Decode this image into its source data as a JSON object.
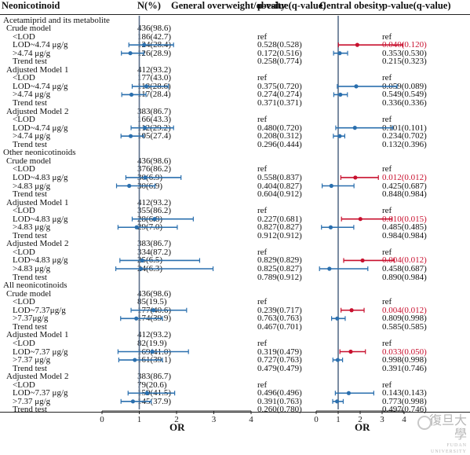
{
  "headers": {
    "col1": "Neonicotinoid",
    "col2": "N(%)",
    "col3": "General overweight/obesity",
    "col4": "p-value(q-value)",
    "col5": "Central obesity",
    "col6": "p-value(q-value)"
  },
  "axis": {
    "label": "OR",
    "ticks": [
      "0",
      "1",
      "2",
      "3",
      "4"
    ]
  },
  "watermark": {
    "cn": "復旦大學",
    "en": "FUDAN UNIVERSITY"
  },
  "colors": {
    "general_point": "#2a6fae",
    "central_point": "#2a6fae",
    "significant": "#c8102e",
    "reference_line": "#5a6f8a"
  },
  "rows": [
    {
      "label": "Acetamiprid and its metabolite",
      "indent": 4
    },
    {
      "label": "Crude model",
      "indent": 8,
      "n": "436(98.6)"
    },
    {
      "label": "<LOD",
      "indent": 16,
      "n": "186(42.7)",
      "p1": "ref",
      "p2": "ref"
    },
    {
      "label": "LOD~4.74 μg/g",
      "indent": 16,
      "n": "124(28.4)",
      "p1": "0.528(0.528)",
      "p2": "0.040(0.120)",
      "p2red": true,
      "g": {
        "or": 1.13,
        "lo": 0.72,
        "hi": 1.92
      },
      "c": {
        "or": 1.87,
        "lo": 1.01,
        "hi": 3.95,
        "sig": true
      }
    },
    {
      "label": ">4.74 μg/g",
      "indent": 16,
      "n": "126(28.9)",
      "p1": "0.172(0.516)",
      "p2": "0.353(0.530)",
      "g": {
        "or": 0.76,
        "lo": 0.52,
        "hi": 1.12
      },
      "c": {
        "or": 1.07,
        "lo": 0.79,
        "hi": 1.43
      }
    },
    {
      "label": "Trend test",
      "indent": 16,
      "p1": "0.258(0.774)",
      "p2": "0.215(0.323)"
    },
    {
      "label": "Adjusted Model 1",
      "indent": 8,
      "n": "412(93.2)"
    },
    {
      "label": "<LOD",
      "indent": 16,
      "n": "177(43.0)",
      "p1": "ref",
      "p2": "ref"
    },
    {
      "label": "LOD~4.74 μg/g",
      "indent": 16,
      "n": "118(28.6)",
      "p1": "0.375(0.720)",
      "p2": "0.059(0.089)",
      "g": {
        "or": 1.19,
        "lo": 0.81,
        "hi": 1.78
      },
      "c": {
        "or": 1.82,
        "lo": 0.96,
        "hi": 3.68
      }
    },
    {
      "label": ">4.74 μg/g",
      "indent": 16,
      "n": "117(28.4)",
      "p1": "0.274(0.274)",
      "p2": "0.549(0.549)",
      "g": {
        "or": 0.79,
        "lo": 0.53,
        "hi": 1.18
      },
      "c": {
        "or": 1.1,
        "lo": 0.8,
        "hi": 1.42
      }
    },
    {
      "label": "Trend test",
      "indent": 16,
      "p1": "0.371(0.371)",
      "p2": "0.336(0.336)"
    },
    {
      "label": "Adjusted Model 2",
      "indent": 8,
      "n": "383(86.7)"
    },
    {
      "label": "<LOD",
      "indent": 16,
      "n": "166(43.3)",
      "p1": "ref",
      "p2": "ref"
    },
    {
      "label": "LOD~4.74 μg/g",
      "indent": 16,
      "n": "112(29.2)",
      "p1": "0.480(0.720)",
      "p2": "0.101(0.101)",
      "g": {
        "or": 1.15,
        "lo": 0.78,
        "hi": 1.92
      },
      "c": {
        "or": 1.76,
        "lo": 0.89,
        "hi": 3.48
      }
    },
    {
      "label": ">4.74 μg/g",
      "indent": 16,
      "n": "105(27.4)",
      "p1": "0.208(0.312)",
      "p2": "0.234(0.702)",
      "g": {
        "or": 0.77,
        "lo": 0.51,
        "hi": 1.12
      },
      "c": {
        "or": 1.07,
        "lo": 0.78,
        "hi": 1.3
      }
    },
    {
      "label": "Trend test",
      "indent": 16,
      "p1": "0.296(0.444)",
      "p2": "0.132(0.396)"
    },
    {
      "label": "Other neonicotinoids",
      "indent": 4
    },
    {
      "label": "Crude model",
      "indent": 8,
      "n": "436(98.6)"
    },
    {
      "label": "<LOD",
      "indent": 16,
      "n": "376(86.2)",
      "p1": "ref",
      "p2": "ref"
    },
    {
      "label": "LOD~4.83 μg/g",
      "indent": 16,
      "n": "30(6.9)",
      "p1": "0.558(0.837)",
      "p2": "0.012(0.012)",
      "p2red": true,
      "g": {
        "or": 1.16,
        "lo": 0.64,
        "hi": 2.12
      },
      "c": {
        "or": 1.78,
        "lo": 1.12,
        "hi": 2.83,
        "sig": true
      }
    },
    {
      "label": ">4.83 μg/g",
      "indent": 16,
      "n": "30(6.9)",
      "p1": "0.404(0.827)",
      "p2": "0.425(0.687)",
      "g": {
        "or": 0.73,
        "lo": 0.39,
        "hi": 1.42
      },
      "c": {
        "or": 0.69,
        "lo": 0.27,
        "hi": 1.72
      }
    },
    {
      "label": "Trend test",
      "indent": 16,
      "p1": "0.604(0.912)",
      "p2": "0.848(0.984)"
    },
    {
      "label": "Adjusted Model 1",
      "indent": 8,
      "n": "412(93.2)"
    },
    {
      "label": "<LOD",
      "indent": 16,
      "n": "355(86.2)",
      "p1": "ref",
      "p2": "ref"
    },
    {
      "label": "LOD~4.83 μg/g",
      "indent": 16,
      "n": "28(6.8)",
      "p1": "0.227(0.681)",
      "p2": "0.010(0.015)",
      "p2red": true,
      "g": {
        "or": 1.41,
        "lo": 0.81,
        "hi": 2.45
      },
      "c": {
        "or": 2.01,
        "lo": 1.15,
        "hi": 3.45,
        "sig": true
      }
    },
    {
      "label": ">4.83 μg/g",
      "indent": 16,
      "n": "29(7.0)",
      "p1": "0.827(0.827)",
      "p2": "0.485(0.485)",
      "g": {
        "or": 0.93,
        "lo": 0.43,
        "hi": 2.02
      },
      "c": {
        "or": 0.66,
        "lo": 0.24,
        "hi": 1.71
      }
    },
    {
      "label": "Trend test",
      "indent": 16,
      "p1": "0.912(0.912)",
      "p2": "0.984(0.984)"
    },
    {
      "label": "Adjusted Model 2",
      "indent": 8,
      "n": "383(86.7)"
    },
    {
      "label": "<LOD",
      "indent": 16,
      "n": "334(87.2)",
      "p1": "ref",
      "p2": "ref"
    },
    {
      "label": "LOD~4.83 μg/g",
      "indent": 16,
      "n": "25(6.5)",
      "p1": "0.829(0.829)",
      "p2": "0.004(0.012)",
      "p2red": true,
      "g": {
        "or": 1.08,
        "lo": 0.48,
        "hi": 2.62
      },
      "c": {
        "or": 2.11,
        "lo": 1.25,
        "hi": 3.55,
        "sig": true
      }
    },
    {
      "label": ">4.83 μg/g",
      "indent": 16,
      "n": "24(6.3)",
      "p1": "0.825(0.827)",
      "p2": "0.458(0.687)",
      "g": {
        "or": 1.04,
        "lo": 0.37,
        "hi": 2.98
      },
      "c": {
        "or": 0.6,
        "lo": 0.15,
        "hi": 2.35
      }
    },
    {
      "label": "Trend test",
      "indent": 16,
      "p1": "0.789(0.912)",
      "p2": "0.890(0.984)"
    },
    {
      "label": "All neonicotinoids",
      "indent": 4
    },
    {
      "label": "Crude model",
      "indent": 8,
      "n": "436(98.6)"
    },
    {
      "label": "<LOD",
      "indent": 16,
      "n": "85(19.5)",
      "p1": "ref",
      "p2": "ref"
    },
    {
      "label": "LOD~7.37μg/g",
      "indent": 16,
      "n": "177(40.6)",
      "p1": "0.239(0.717)",
      "p2": "0.004(0.012)",
      "p2red": true,
      "g": {
        "or": 1.38,
        "lo": 0.78,
        "hi": 2.27
      },
      "c": {
        "or": 1.61,
        "lo": 1.13,
        "hi": 2.18,
        "sig": true
      }
    },
    {
      "label": ">7.37μg/g",
      "indent": 16,
      "n": "174(39.9)",
      "p1": "0.763(0.763)",
      "p2": "0.809(0.998)",
      "g": {
        "or": 0.92,
        "lo": 0.5,
        "hi": 1.62
      },
      "c": {
        "or": 0.96,
        "lo": 0.7,
        "hi": 1.32
      }
    },
    {
      "label": "Trend test",
      "indent": 16,
      "p1": "0.467(0.701)",
      "p2": "0.585(0.585)"
    },
    {
      "label": "Adjusted Model 1",
      "indent": 8,
      "n": "412(93.2)"
    },
    {
      "label": "<LOD",
      "indent": 16,
      "n": "82(19.9)",
      "p1": "ref",
      "p2": "ref"
    },
    {
      "label": "LOD~7.37 μg/g",
      "indent": 16,
      "n": "169(41.0)",
      "p1": "0.319(0.479)",
      "p2": "0.033(0.050)",
      "p2red": true,
      "g": {
        "or": 1.35,
        "lo": 0.43,
        "hi": 2.32
      },
      "c": {
        "or": 1.57,
        "lo": 1.08,
        "hi": 2.24,
        "sig": true
      }
    },
    {
      "label": ">7.37 μg/g",
      "indent": 16,
      "n": "161(39.1)",
      "p1": "0.727(0.763)",
      "p2": "0.998(0.998)",
      "g": {
        "or": 0.88,
        "lo": 0.45,
        "hi": 1.62
      },
      "c": {
        "or": 0.98,
        "lo": 0.76,
        "hi": 1.2
      }
    },
    {
      "label": "Trend test",
      "indent": 16,
      "p1": "0.479(0.479)",
      "p2": "0.391(0.746)"
    },
    {
      "label": "Adjusted Model 2",
      "indent": 8,
      "n": "383(86.7)"
    },
    {
      "label": "<LOD",
      "indent": 16,
      "n": "79(20.6)",
      "p1": "ref",
      "p2": "ref"
    },
    {
      "label": "LOD~7.37 μg/g",
      "indent": 16,
      "n": "159(41.5)",
      "p1": "0.496(0.496)",
      "p2": "0.143(0.143)",
      "g": {
        "or": 1.21,
        "lo": 0.7,
        "hi": 1.95
      },
      "c": {
        "or": 1.48,
        "lo": 0.87,
        "hi": 2.62
      }
    },
    {
      "label": ">7.37 μg/g",
      "indent": 16,
      "n": "145(37.9)",
      "p1": "0.391(0.763)",
      "p2": "0.773(0.998)",
      "g": {
        "or": 0.83,
        "lo": 0.51,
        "hi": 1.32
      },
      "c": {
        "or": 0.95,
        "lo": 0.75,
        "hi": 1.23
      }
    },
    {
      "label": "Trend test",
      "indent": 16,
      "p1": "0.260(0.780)",
      "p2": "0.497(0.746)"
    }
  ]
}
